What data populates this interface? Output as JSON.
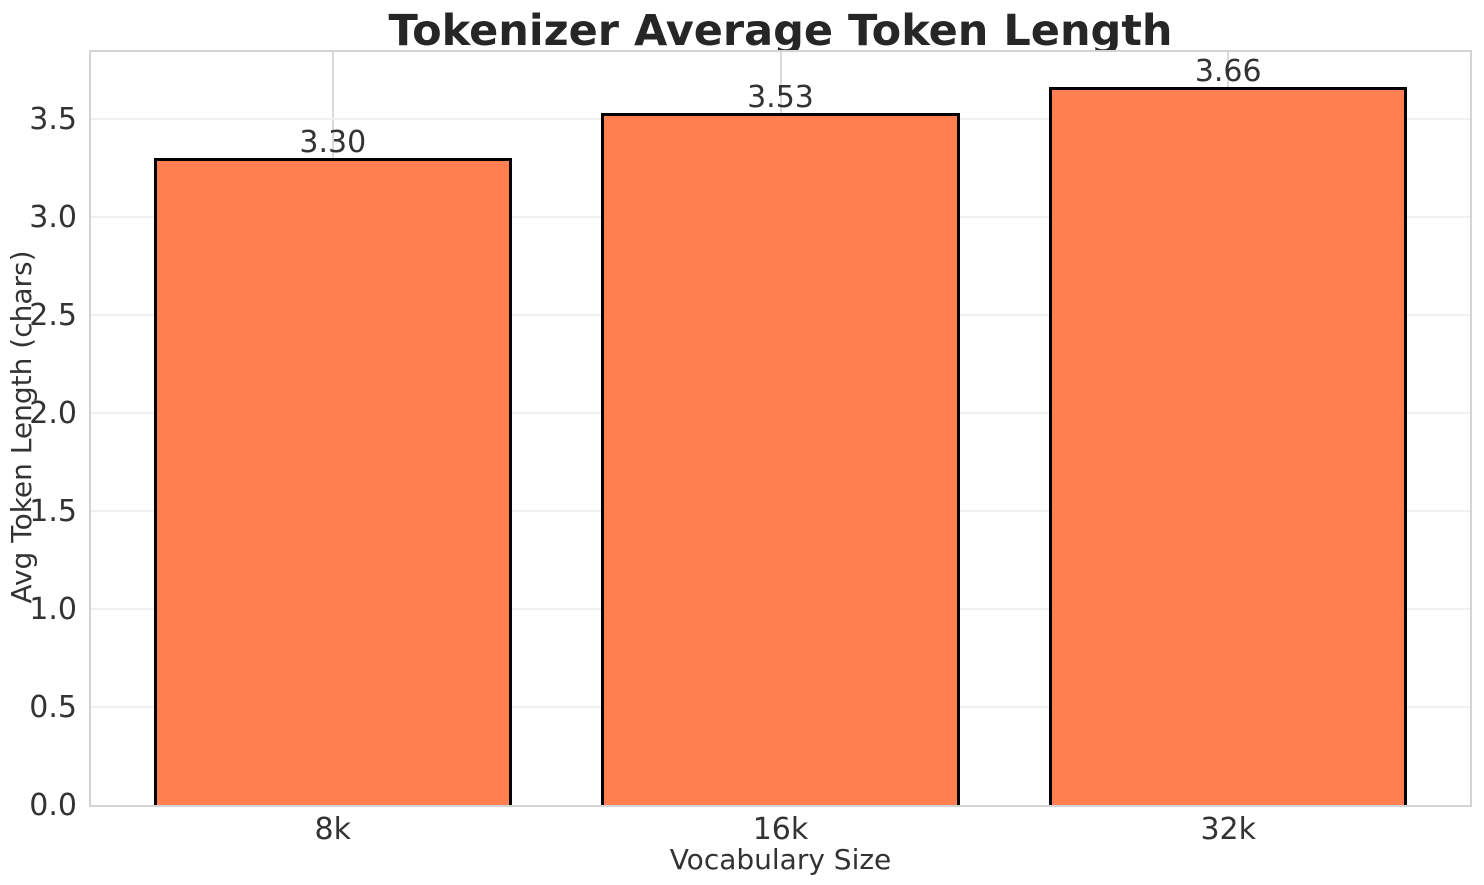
{
  "chart_data": {
    "type": "bar",
    "title": "Tokenizer Average Token Length",
    "xlabel": "Vocabulary Size",
    "ylabel": "Avg Token Length (chars)",
    "categories": [
      "8k",
      "16k",
      "32k"
    ],
    "values": [
      3.3,
      3.53,
      3.66
    ],
    "value_labels": [
      "3.30",
      "3.53",
      "3.66"
    ],
    "yticks": [
      0.0,
      0.5,
      1.0,
      1.5,
      2.0,
      2.5,
      3.0,
      3.5
    ],
    "ytick_labels": [
      "0.0",
      "0.5",
      "1.0",
      "1.5",
      "2.0",
      "2.5",
      "3.0",
      "3.5"
    ],
    "ylim": [
      0,
      3.84
    ],
    "grid": true,
    "legend": null,
    "bar_color": "#FF7F50",
    "bar_edge_color": "#000000",
    "grid_h_color": "#f0f0f0",
    "grid_v_color": "#dbdbdb",
    "spine_color": "#d4d4d4",
    "text_color": "#333333",
    "title_color": "#262626"
  }
}
